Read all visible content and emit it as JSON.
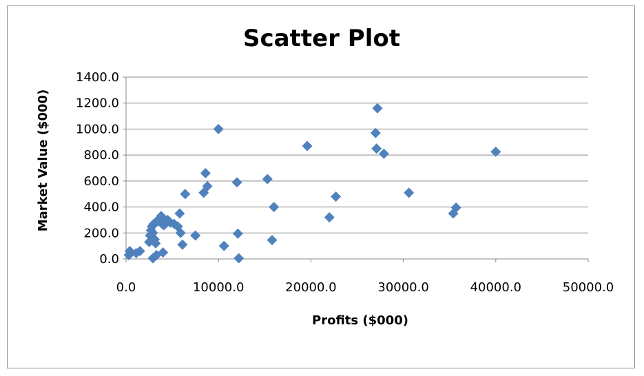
{
  "chart_data": {
    "type": "scatter",
    "title": "Scatter Plot",
    "xlabel": "Profits ($000)",
    "ylabel": "Market Value ($000)",
    "xlim": [
      0,
      50000
    ],
    "ylim": [
      0,
      1400
    ],
    "x_ticks": [
      "0.0",
      "10000.0",
      "20000.0",
      "30000.0",
      "40000.0",
      "50000.0"
    ],
    "y_ticks": [
      "0.0",
      "200.0",
      "400.0",
      "600.0",
      "800.0",
      "1000.0",
      "1200.0",
      "1400.0"
    ],
    "grid": "horizontal",
    "legend": "none",
    "marker": "diamond",
    "color": "#4F81BD",
    "points": [
      [
        400,
        60
      ],
      [
        300,
        30
      ],
      [
        1100,
        45
      ],
      [
        1500,
        60
      ],
      [
        2500,
        130
      ],
      [
        2600,
        180
      ],
      [
        2700,
        220
      ],
      [
        2800,
        250
      ],
      [
        3000,
        270
      ],
      [
        2900,
        200
      ],
      [
        3100,
        150
      ],
      [
        3200,
        120
      ],
      [
        3400,
        290
      ],
      [
        3600,
        310
      ],
      [
        3800,
        330
      ],
      [
        3900,
        270
      ],
      [
        4100,
        260
      ],
      [
        4500,
        300
      ],
      [
        4800,
        280
      ],
      [
        5200,
        270
      ],
      [
        5600,
        250
      ],
      [
        5800,
        350
      ],
      [
        5900,
        200
      ],
      [
        6100,
        110
      ],
      [
        6400,
        500
      ],
      [
        2900,
        5
      ],
      [
        3300,
        30
      ],
      [
        4000,
        50
      ],
      [
        7500,
        180
      ],
      [
        8400,
        510
      ],
      [
        8600,
        660
      ],
      [
        8800,
        560
      ],
      [
        10000,
        1000
      ],
      [
        10600,
        100
      ],
      [
        12000,
        590
      ],
      [
        12100,
        195
      ],
      [
        12200,
        5
      ],
      [
        15300,
        615
      ],
      [
        15800,
        145
      ],
      [
        16000,
        400
      ],
      [
        19600,
        870
      ],
      [
        22000,
        320
      ],
      [
        22700,
        480
      ],
      [
        27000,
        970
      ],
      [
        27100,
        850
      ],
      [
        27200,
        1160
      ],
      [
        27900,
        810
      ],
      [
        30600,
        510
      ],
      [
        35400,
        350
      ],
      [
        35700,
        395
      ],
      [
        40000,
        825
      ]
    ]
  }
}
